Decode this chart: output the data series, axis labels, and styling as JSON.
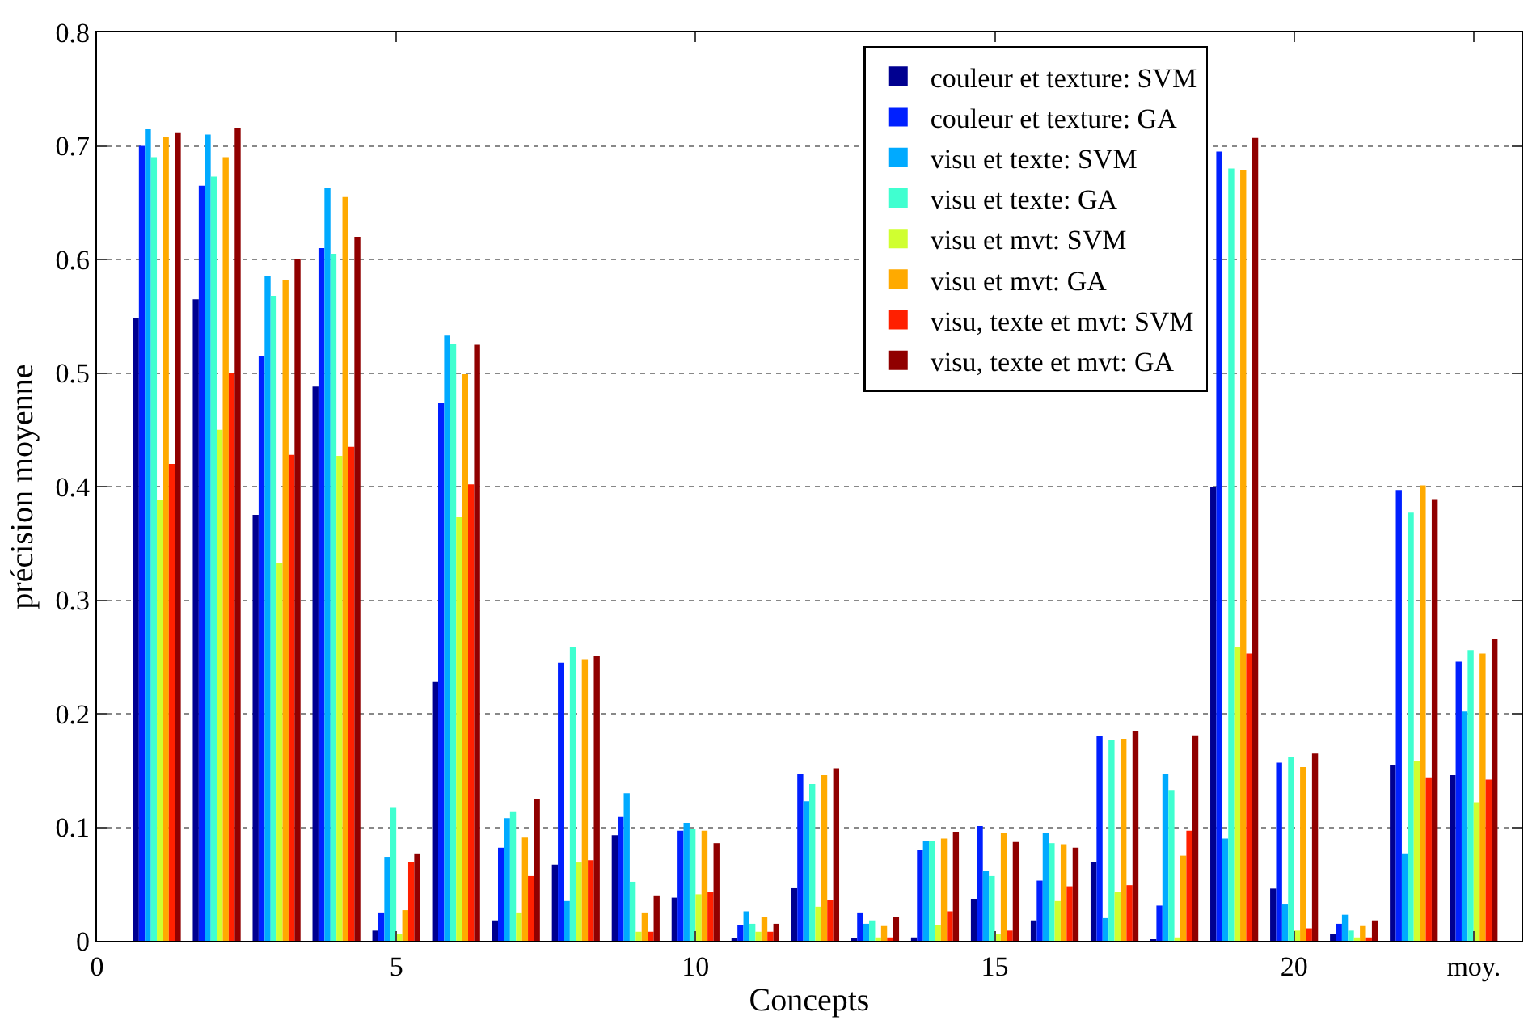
{
  "chart_data": {
    "type": "bar",
    "xlabel": "Concepts",
    "ylabel": "précision moyenne",
    "x": [
      1,
      2,
      3,
      4,
      5,
      6,
      7,
      8,
      9,
      10,
      11,
      12,
      13,
      14,
      15,
      16,
      17,
      18,
      19,
      20,
      21,
      22,
      23
    ],
    "xlim": [
      0,
      23.8
    ],
    "xticks": [
      0,
      5,
      10,
      15,
      20,
      {
        "value": 23,
        "label": "moy."
      }
    ],
    "ylim": [
      0,
      0.8
    ],
    "yticks": [
      0,
      0.1,
      0.2,
      0.3,
      0.4,
      0.5,
      0.6,
      0.7,
      0.8
    ],
    "grid": "y",
    "legend": "top right",
    "series": [
      {
        "name": "couleur et texture: SVM",
        "color": "#000090",
        "values": [
          0.548,
          0.565,
          0.375,
          0.488,
          0.009,
          0.228,
          0.018,
          0.067,
          0.093,
          0.038,
          0.002,
          0.047,
          0.002,
          0.003,
          0.037,
          0.018,
          0.069,
          0.001,
          0.4,
          0.046,
          0.006,
          0.155,
          0.146
        ]
      },
      {
        "name": "couleur et texture: GA",
        "color": "#0020ff",
        "values": [
          0.7,
          0.665,
          0.515,
          0.61,
          0.025,
          0.474,
          0.082,
          0.245,
          0.109,
          0.097,
          0.014,
          0.147,
          0.025,
          0.08,
          0.101,
          0.053,
          0.18,
          0.031,
          0.695,
          0.157,
          0.015,
          0.397,
          0.246
        ]
      },
      {
        "name": "visu et texte: SVM",
        "color": "#00aaff",
        "values": [
          0.715,
          0.71,
          0.585,
          0.663,
          0.074,
          0.533,
          0.108,
          0.035,
          0.13,
          0.104,
          0.026,
          0.123,
          0.015,
          0.088,
          0.062,
          0.095,
          0.02,
          0.147,
          0.09,
          0.032,
          0.023,
          0.077,
          0.202
        ]
      },
      {
        "name": "visu et texte: GA",
        "color": "#40ffd0",
        "values": [
          0.69,
          0.673,
          0.568,
          0.605,
          0.117,
          0.526,
          0.114,
          0.259,
          0.052,
          0.099,
          0.015,
          0.138,
          0.018,
          0.088,
          0.057,
          0.086,
          0.177,
          0.133,
          0.68,
          0.162,
          0.009,
          0.377,
          0.256
        ]
      },
      {
        "name": "visu et mvt: SVM",
        "color": "#d0ff30",
        "values": [
          0.388,
          0.45,
          0.333,
          0.427,
          0.006,
          0.373,
          0.025,
          0.069,
          0.008,
          0.041,
          0.008,
          0.03,
          0.003,
          0.014,
          0.006,
          0.035,
          0.043,
          0.003,
          0.259,
          0.009,
          0.003,
          0.158,
          0.122
        ]
      },
      {
        "name": "visu et mvt: GA",
        "color": "#ffaa00",
        "values": [
          0.708,
          0.69,
          0.582,
          0.655,
          0.027,
          0.499,
          0.091,
          0.248,
          0.025,
          0.097,
          0.021,
          0.146,
          0.013,
          0.09,
          0.095,
          0.085,
          0.178,
          0.075,
          0.679,
          0.153,
          0.013,
          0.401,
          0.253
        ]
      },
      {
        "name": "visu, texte et mvt: SVM",
        "color": "#ff2000",
        "values": [
          0.42,
          0.5,
          0.428,
          0.435,
          0.069,
          0.402,
          0.057,
          0.071,
          0.008,
          0.043,
          0.008,
          0.036,
          0.003,
          0.026,
          0.009,
          0.048,
          0.049,
          0.097,
          0.253,
          0.011,
          0.003,
          0.144,
          0.142
        ]
      },
      {
        "name": "visu, texte et mvt: GA",
        "color": "#900000",
        "values": [
          0.712,
          0.716,
          0.6,
          0.62,
          0.077,
          0.525,
          0.125,
          0.251,
          0.04,
          0.086,
          0.015,
          0.152,
          0.021,
          0.096,
          0.087,
          0.082,
          0.185,
          0.181,
          0.707,
          0.165,
          0.018,
          0.389,
          0.266
        ]
      }
    ]
  }
}
